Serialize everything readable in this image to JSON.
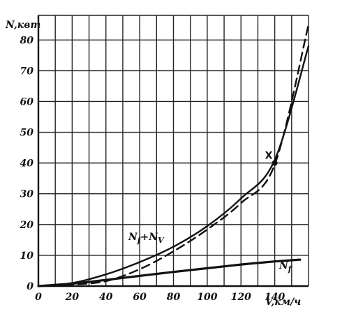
{
  "chart_data": {
    "type": "line",
    "xlabel": "V,км/ч",
    "ylabel": "N,квт",
    "xlim": [
      0,
      160
    ],
    "ylim": [
      0,
      88
    ],
    "x_ticks": [
      "0",
      "20",
      "40",
      "60",
      "80",
      "100",
      "120",
      "140"
    ],
    "y_ticks": [
      "0",
      "10",
      "20",
      "30",
      "40",
      "50",
      "60",
      "70",
      "80"
    ],
    "grid": true,
    "series": [
      {
        "name": "N_f+N_V",
        "style": "solid",
        "x": [
          0,
          20,
          40,
          60,
          80,
          100,
          120,
          140,
          160
        ],
        "y": [
          0,
          1.0,
          3.8,
          7.8,
          12.8,
          19.5,
          28.5,
          41,
          78
        ]
      },
      {
        "style": "dashed",
        "x": [
          0,
          20,
          40,
          60,
          80,
          100,
          120,
          140,
          160
        ],
        "y": [
          0,
          0.5,
          1.6,
          5.5,
          11.3,
          18.4,
          27,
          39.5,
          85
        ]
      },
      {
        "name": "N_f",
        "style": "solid-bold",
        "x": [
          0,
          20,
          40,
          60,
          80,
          100,
          120,
          140,
          155
        ],
        "y": [
          0,
          0.8,
          2.0,
          3.3,
          4.6,
          5.8,
          7.0,
          8.0,
          8.6
        ]
      }
    ],
    "annotations": [
      {
        "label": "X",
        "x": 140,
        "y": 40
      }
    ],
    "series_labels": {
      "total": {
        "base": "N",
        "sub1": "f",
        "plus": "+",
        "base2": "N",
        "sub2": "V"
      },
      "friction": {
        "base": "N",
        "sub": "f"
      }
    }
  }
}
